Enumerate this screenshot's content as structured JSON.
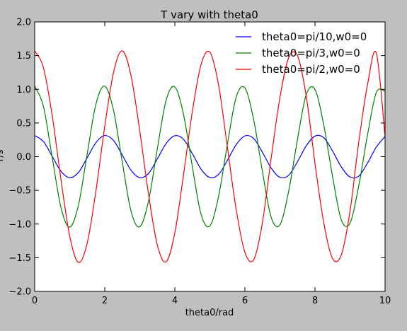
{
  "chart_data": {
    "type": "line",
    "title": "T vary with theta0",
    "xlabel": "theta0/rad",
    "ylabel": "T/s",
    "xlim": [
      0,
      10
    ],
    "ylim": [
      -2.0,
      2.0
    ],
    "x_ticks": [
      "0",
      "2",
      "4",
      "6",
      "8",
      "10"
    ],
    "y_ticks": [
      "−2.0",
      "−1.5",
      "−1.0",
      "−0.5",
      "0.0",
      "0.5",
      "1.0",
      "1.5",
      "2.0"
    ],
    "x_tick_values": [
      0,
      2,
      4,
      6,
      8,
      10
    ],
    "y_tick_values": [
      -2.0,
      -1.5,
      -1.0,
      -0.5,
      0.0,
      0.5,
      1.0,
      1.5,
      2.0
    ],
    "grid": false,
    "legend_position": "top-right",
    "series": [
      {
        "name": "theta0=pi/10,w0=0",
        "color": "#0000ff",
        "x": [
          0,
          0.25,
          0.5,
          0.75,
          1.0,
          1.25,
          1.5,
          1.75,
          2.0,
          2.25,
          2.5,
          2.75,
          3.0,
          3.25,
          3.5,
          3.75,
          4.0,
          4.25,
          4.5,
          4.75,
          5.0,
          5.25,
          5.5,
          5.75,
          6.0,
          6.25,
          6.5,
          6.75,
          7.0,
          7.25,
          7.5,
          7.75,
          8.0,
          8.25,
          8.5,
          8.75,
          9.0,
          9.25,
          9.5,
          9.75,
          10.0
        ],
        "y": [
          0.314,
          0.224,
          0.005,
          -0.217,
          -0.313,
          -0.233,
          -0.015,
          0.21,
          0.314,
          0.241,
          0.025,
          -0.202,
          -0.312,
          -0.249,
          -0.035,
          0.194,
          0.311,
          0.256,
          0.045,
          -0.186,
          -0.31,
          -0.263,
          -0.055,
          0.177,
          0.308,
          0.27,
          0.065,
          -0.169,
          -0.307,
          -0.276,
          -0.075,
          0.16,
          0.305,
          0.282,
          0.085,
          -0.151,
          -0.302,
          -0.288,
          -0.095,
          0.142,
          0.3
        ]
      },
      {
        "name": "theta0=pi/3,w0=0",
        "color": "#008000",
        "x": [
          0,
          0.25,
          0.5,
          0.75,
          1.0,
          1.25,
          1.5,
          1.75,
          2.0,
          2.25,
          2.5,
          2.75,
          3.0,
          3.25,
          3.5,
          3.75,
          4.0,
          4.25,
          4.5,
          4.75,
          5.0,
          5.25,
          5.5,
          5.75,
          6.0,
          6.25,
          6.5,
          6.75,
          7.0,
          7.25,
          7.5,
          7.75,
          8.0,
          8.25,
          8.5,
          8.75,
          9.0,
          9.25,
          9.5,
          9.75,
          10.0
        ],
        "y": [
          1.047,
          0.745,
          -0.01,
          -0.755,
          -1.046,
          -0.717,
          0.045,
          0.785,
          1.045,
          0.688,
          -0.08,
          -0.81,
          -1.04,
          -0.655,
          0.115,
          0.835,
          1.035,
          0.62,
          -0.15,
          -0.86,
          -1.028,
          -0.585,
          0.185,
          0.882,
          1.02,
          0.548,
          -0.22,
          -0.902,
          -1.01,
          -0.51,
          0.255,
          0.92,
          0.998,
          0.47,
          -0.29,
          -0.937,
          -0.985,
          -0.43,
          0.325,
          0.952,
          0.97
        ]
      },
      {
        "name": "theta0=pi/2,w0=0",
        "color": "#ff0000",
        "x": [
          0,
          0.25,
          0.5,
          0.75,
          1.0,
          1.25,
          1.5,
          1.75,
          2.0,
          2.25,
          2.5,
          2.75,
          3.0,
          3.25,
          3.5,
          3.75,
          4.0,
          4.25,
          4.5,
          4.75,
          5.0,
          5.25,
          5.5,
          5.75,
          6.0,
          6.25,
          6.5,
          6.75,
          7.0,
          7.25,
          7.5,
          7.75,
          8.0,
          8.25,
          8.5,
          8.75,
          9.0,
          9.25,
          9.5,
          9.75,
          10.0
        ],
        "y": [
          1.571,
          1.32,
          0.61,
          -0.34,
          -1.18,
          -1.571,
          -1.28,
          -0.5,
          0.45,
          1.25,
          1.571,
          1.2,
          0.38,
          -0.56,
          -1.31,
          -1.56,
          -1.13,
          -0.26,
          0.67,
          1.37,
          1.55,
          1.06,
          0.14,
          -0.78,
          -1.42,
          -1.53,
          -0.98,
          -0.02,
          0.88,
          1.47,
          1.5,
          0.9,
          -0.1,
          -0.98,
          -1.51,
          -1.46,
          -0.81,
          0.22,
          1.07,
          1.54,
          0.3
        ]
      }
    ]
  }
}
